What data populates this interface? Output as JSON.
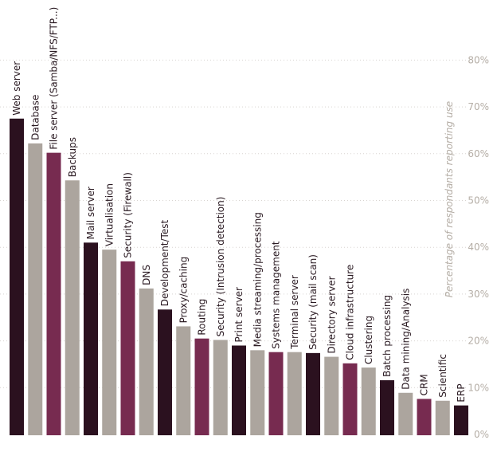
{
  "chart_data": {
    "type": "bar",
    "title": "",
    "xlabel": "",
    "ylabel": "Percentage of  respondants reporting use",
    "ylim": [
      0,
      80
    ],
    "yticks": [
      "0%",
      "10%",
      "20%",
      "30%",
      "40%",
      "50%",
      "60%",
      "70%",
      "80%"
    ],
    "grid": true,
    "categories": [
      "Web server",
      "Database",
      "File server (Samba/NFS/FTP...)",
      "Backups",
      "Mail server",
      "Virtualisation",
      "Security (Firewall)",
      "DNS",
      "Development/Test",
      "Proxy/caching",
      "Routing",
      "Security (Intrusion detection)",
      "Print server",
      "Media streaming/processing",
      "Systems management",
      "Terminal server",
      "Security (mail scan)",
      "Directory server",
      "Cloud infrastructure",
      "Clustering",
      "Batch processing",
      "Data mining/Analysis",
      "CRM",
      "Scientific",
      "ERP"
    ],
    "values": [
      67.5,
      62.2,
      60.2,
      54.3,
      41.0,
      39.5,
      37.0,
      31.2,
      26.7,
      23.1,
      20.5,
      20.2,
      19.0,
      18.0,
      17.6,
      17.6,
      17.4,
      16.6,
      15.2,
      14.3,
      11.6,
      8.9,
      7.6,
      7.2,
      6.2
    ],
    "colors": [
      "#2b111f",
      "#aca59e",
      "#772b50",
      "#aca59e"
    ]
  }
}
